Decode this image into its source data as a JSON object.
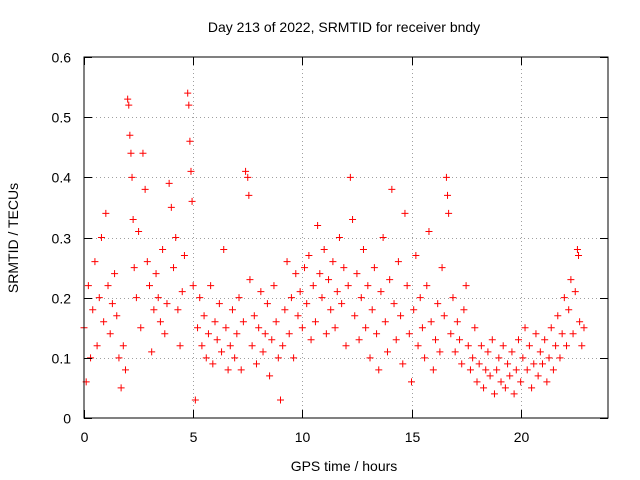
{
  "chart_data": {
    "type": "scatter",
    "title": "Day 213 of 2022, SRMTID for receiver bndy",
    "xlabel": "GPS time / hours",
    "ylabel": "SRMTID / TECUs",
    "xlim": [
      0,
      24
    ],
    "ylim": [
      0,
      0.6
    ],
    "xticks": [
      0,
      5,
      10,
      15,
      20
    ],
    "xtick_labels": [
      "0",
      "5",
      "10",
      "15",
      "20"
    ],
    "yticks": [
      0,
      0.1,
      0.2,
      0.3,
      0.4,
      0.5,
      0.6
    ],
    "ytick_labels": [
      "0",
      "0.1",
      "0.2",
      "0.3",
      "0.4",
      "0.5",
      "0.6"
    ],
    "grid": true,
    "marker": "+",
    "color": "#ff0000",
    "series": [
      {
        "name": "SRMTID",
        "points": [
          [
            0.0,
            0.15
          ],
          [
            0.1,
            0.06
          ],
          [
            0.2,
            0.22
          ],
          [
            0.3,
            0.1
          ],
          [
            0.4,
            0.18
          ],
          [
            0.5,
            0.26
          ],
          [
            0.6,
            0.12
          ],
          [
            0.7,
            0.2
          ],
          [
            0.8,
            0.3
          ],
          [
            0.9,
            0.16
          ],
          [
            1.0,
            0.34
          ],
          [
            1.1,
            0.22
          ],
          [
            1.2,
            0.14
          ],
          [
            1.3,
            0.19
          ],
          [
            1.4,
            0.24
          ],
          [
            1.5,
            0.17
          ],
          [
            1.6,
            0.1
          ],
          [
            1.7,
            0.05
          ],
          [
            1.8,
            0.12
          ],
          [
            1.9,
            0.08
          ],
          [
            2.0,
            0.53
          ],
          [
            2.05,
            0.52
          ],
          [
            2.1,
            0.47
          ],
          [
            2.15,
            0.44
          ],
          [
            2.2,
            0.4
          ],
          [
            2.25,
            0.33
          ],
          [
            2.3,
            0.25
          ],
          [
            2.4,
            0.2
          ],
          [
            2.5,
            0.31
          ],
          [
            2.6,
            0.15
          ],
          [
            2.7,
            0.44
          ],
          [
            2.8,
            0.38
          ],
          [
            2.9,
            0.26
          ],
          [
            3.0,
            0.22
          ],
          [
            3.1,
            0.11
          ],
          [
            3.2,
            0.18
          ],
          [
            3.3,
            0.24
          ],
          [
            3.4,
            0.2
          ],
          [
            3.5,
            0.16
          ],
          [
            3.6,
            0.28
          ],
          [
            3.7,
            0.14
          ],
          [
            3.8,
            0.19
          ],
          [
            3.9,
            0.39
          ],
          [
            4.0,
            0.35
          ],
          [
            4.1,
            0.25
          ],
          [
            4.2,
            0.3
          ],
          [
            4.3,
            0.18
          ],
          [
            4.4,
            0.12
          ],
          [
            4.5,
            0.21
          ],
          [
            4.6,
            0.27
          ],
          [
            4.75,
            0.54
          ],
          [
            4.8,
            0.52
          ],
          [
            4.85,
            0.46
          ],
          [
            4.9,
            0.41
          ],
          [
            4.95,
            0.36
          ],
          [
            5.0,
            0.22
          ],
          [
            5.1,
            0.03
          ],
          [
            5.2,
            0.15
          ],
          [
            5.3,
            0.2
          ],
          [
            5.4,
            0.12
          ],
          [
            5.5,
            0.17
          ],
          [
            5.6,
            0.1
          ],
          [
            5.7,
            0.14
          ],
          [
            5.8,
            0.22
          ],
          [
            5.9,
            0.09
          ],
          [
            6.0,
            0.16
          ],
          [
            6.1,
            0.13
          ],
          [
            6.2,
            0.19
          ],
          [
            6.3,
            0.11
          ],
          [
            6.4,
            0.28
          ],
          [
            6.5,
            0.15
          ],
          [
            6.6,
            0.08
          ],
          [
            6.7,
            0.12
          ],
          [
            6.8,
            0.18
          ],
          [
            6.9,
            0.1
          ],
          [
            7.0,
            0.14
          ],
          [
            7.1,
            0.2
          ],
          [
            7.2,
            0.08
          ],
          [
            7.3,
            0.16
          ],
          [
            7.4,
            0.41
          ],
          [
            7.5,
            0.4
          ],
          [
            7.55,
            0.37
          ],
          [
            7.6,
            0.23
          ],
          [
            7.7,
            0.12
          ],
          [
            7.8,
            0.17
          ],
          [
            7.9,
            0.09
          ],
          [
            8.0,
            0.15
          ],
          [
            8.1,
            0.21
          ],
          [
            8.2,
            0.11
          ],
          [
            8.3,
            0.14
          ],
          [
            8.4,
            0.19
          ],
          [
            8.5,
            0.07
          ],
          [
            8.6,
            0.13
          ],
          [
            8.7,
            0.22
          ],
          [
            8.8,
            0.16
          ],
          [
            8.9,
            0.1
          ],
          [
            9.0,
            0.03
          ],
          [
            9.1,
            0.12
          ],
          [
            9.2,
            0.18
          ],
          [
            9.3,
            0.26
          ],
          [
            9.4,
            0.14
          ],
          [
            9.5,
            0.2
          ],
          [
            9.6,
            0.1
          ],
          [
            9.7,
            0.24
          ],
          [
            9.8,
            0.17
          ],
          [
            9.9,
            0.21
          ],
          [
            10.0,
            0.15
          ],
          [
            10.1,
            0.25
          ],
          [
            10.2,
            0.19
          ],
          [
            10.3,
            0.27
          ],
          [
            10.4,
            0.13
          ],
          [
            10.5,
            0.22
          ],
          [
            10.6,
            0.16
          ],
          [
            10.7,
            0.32
          ],
          [
            10.8,
            0.24
          ],
          [
            10.9,
            0.2
          ],
          [
            11.0,
            0.28
          ],
          [
            11.1,
            0.14
          ],
          [
            11.2,
            0.23
          ],
          [
            11.3,
            0.18
          ],
          [
            11.4,
            0.26
          ],
          [
            11.5,
            0.15
          ],
          [
            11.6,
            0.21
          ],
          [
            11.7,
            0.3
          ],
          [
            11.8,
            0.19
          ],
          [
            11.9,
            0.25
          ],
          [
            12.0,
            0.12
          ],
          [
            12.1,
            0.22
          ],
          [
            12.2,
            0.4
          ],
          [
            12.3,
            0.33
          ],
          [
            12.4,
            0.17
          ],
          [
            12.5,
            0.24
          ],
          [
            12.6,
            0.13
          ],
          [
            12.7,
            0.2
          ],
          [
            12.8,
            0.28
          ],
          [
            12.9,
            0.15
          ],
          [
            13.0,
            0.22
          ],
          [
            13.1,
            0.1
          ],
          [
            13.2,
            0.18
          ],
          [
            13.3,
            0.25
          ],
          [
            13.4,
            0.14
          ],
          [
            13.5,
            0.08
          ],
          [
            13.6,
            0.21
          ],
          [
            13.7,
            0.3
          ],
          [
            13.8,
            0.16
          ],
          [
            13.9,
            0.11
          ],
          [
            14.0,
            0.23
          ],
          [
            14.1,
            0.38
          ],
          [
            14.2,
            0.19
          ],
          [
            14.3,
            0.13
          ],
          [
            14.4,
            0.26
          ],
          [
            14.5,
            0.17
          ],
          [
            14.6,
            0.09
          ],
          [
            14.7,
            0.34
          ],
          [
            14.8,
            0.22
          ],
          [
            14.9,
            0.14
          ],
          [
            15.0,
            0.06
          ],
          [
            15.1,
            0.18
          ],
          [
            15.2,
            0.27
          ],
          [
            15.3,
            0.12
          ],
          [
            15.4,
            0.2
          ],
          [
            15.5,
            0.15
          ],
          [
            15.6,
            0.1
          ],
          [
            15.7,
            0.22
          ],
          [
            15.8,
            0.31
          ],
          [
            15.9,
            0.16
          ],
          [
            16.0,
            0.08
          ],
          [
            16.1,
            0.13
          ],
          [
            16.2,
            0.19
          ],
          [
            16.3,
            0.11
          ],
          [
            16.4,
            0.25
          ],
          [
            16.5,
            0.17
          ],
          [
            16.6,
            0.4
          ],
          [
            16.65,
            0.37
          ],
          [
            16.7,
            0.34
          ],
          [
            16.8,
            0.14
          ],
          [
            16.9,
            0.2
          ],
          [
            17.0,
            0.11
          ],
          [
            17.1,
            0.16
          ],
          [
            17.2,
            0.13
          ],
          [
            17.3,
            0.09
          ],
          [
            17.4,
            0.18
          ],
          [
            17.5,
            0.22
          ],
          [
            17.6,
            0.12
          ],
          [
            17.7,
            0.08
          ],
          [
            17.8,
            0.1
          ],
          [
            17.9,
            0.15
          ],
          [
            18.0,
            0.06
          ],
          [
            18.1,
            0.09
          ],
          [
            18.2,
            0.12
          ],
          [
            18.3,
            0.05
          ],
          [
            18.4,
            0.08
          ],
          [
            18.5,
            0.11
          ],
          [
            18.6,
            0.07
          ],
          [
            18.7,
            0.13
          ],
          [
            18.8,
            0.04
          ],
          [
            18.9,
            0.08
          ],
          [
            19.0,
            0.1
          ],
          [
            19.1,
            0.06
          ],
          [
            19.2,
            0.12
          ],
          [
            19.3,
            0.05
          ],
          [
            19.4,
            0.09
          ],
          [
            19.5,
            0.07
          ],
          [
            19.6,
            0.11
          ],
          [
            19.7,
            0.04
          ],
          [
            19.8,
            0.08
          ],
          [
            19.9,
            0.13
          ],
          [
            20.0,
            0.06
          ],
          [
            20.1,
            0.1
          ],
          [
            20.2,
            0.15
          ],
          [
            20.3,
            0.08
          ],
          [
            20.4,
            0.12
          ],
          [
            20.5,
            0.05
          ],
          [
            20.6,
            0.09
          ],
          [
            20.7,
            0.14
          ],
          [
            20.8,
            0.07
          ],
          [
            20.9,
            0.11
          ],
          [
            21.0,
            0.09
          ],
          [
            21.1,
            0.13
          ],
          [
            21.2,
            0.06
          ],
          [
            21.3,
            0.1
          ],
          [
            21.4,
            0.15
          ],
          [
            21.5,
            0.08
          ],
          [
            21.6,
            0.12
          ],
          [
            21.7,
            0.17
          ],
          [
            21.8,
            0.1
          ],
          [
            21.9,
            0.14
          ],
          [
            22.0,
            0.2
          ],
          [
            22.1,
            0.12
          ],
          [
            22.2,
            0.18
          ],
          [
            22.3,
            0.23
          ],
          [
            22.4,
            0.14
          ],
          [
            22.5,
            0.21
          ],
          [
            22.6,
            0.28
          ],
          [
            22.65,
            0.27
          ],
          [
            22.7,
            0.16
          ],
          [
            22.8,
            0.12
          ],
          [
            22.9,
            0.15
          ]
        ]
      }
    ]
  }
}
